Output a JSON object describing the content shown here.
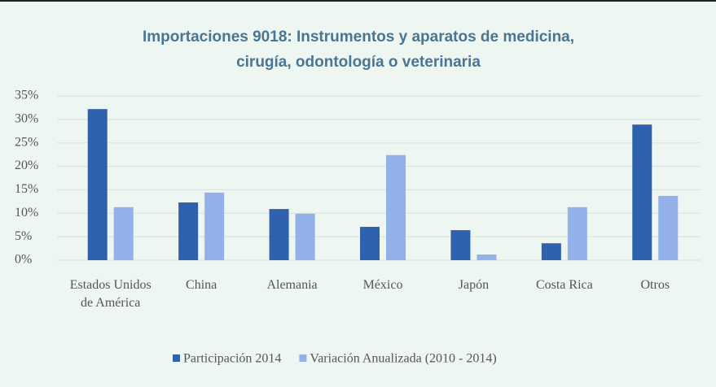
{
  "chart_data": {
    "type": "bar",
    "title": [
      "Importaciones 9018: Instrumentos y aparatos de medicina,",
      "cirugía, odontología o veterinaria"
    ],
    "categories": [
      "Estados Unidos de América",
      "China",
      "Alemania",
      "México",
      "Japón",
      "Costa Rica",
      "Otros"
    ],
    "series": [
      {
        "name": "Participación 2014",
        "color": "#2e62ae",
        "values": [
          32.2,
          12.3,
          10.9,
          7.1,
          6.4,
          3.6,
          28.9
        ]
      },
      {
        "name": "Variación Anualizada (2010 - 2014)",
        "color": "#92b1e8",
        "values": [
          11.3,
          14.4,
          9.9,
          22.4,
          1.2,
          11.3,
          13.7
        ]
      }
    ],
    "ylim": [
      0,
      35
    ],
    "yticks": [
      {
        "value": 0,
        "label": "0%"
      },
      {
        "value": 5,
        "label": "5%"
      },
      {
        "value": 10,
        "label": "10%"
      },
      {
        "value": 15,
        "label": "15%"
      },
      {
        "value": 20,
        "label": "20%"
      },
      {
        "value": 25,
        "label": "25%"
      },
      {
        "value": 30,
        "label": "30%"
      },
      {
        "value": 35,
        "label": "35%"
      }
    ],
    "grid": true,
    "legend": "bottom"
  }
}
